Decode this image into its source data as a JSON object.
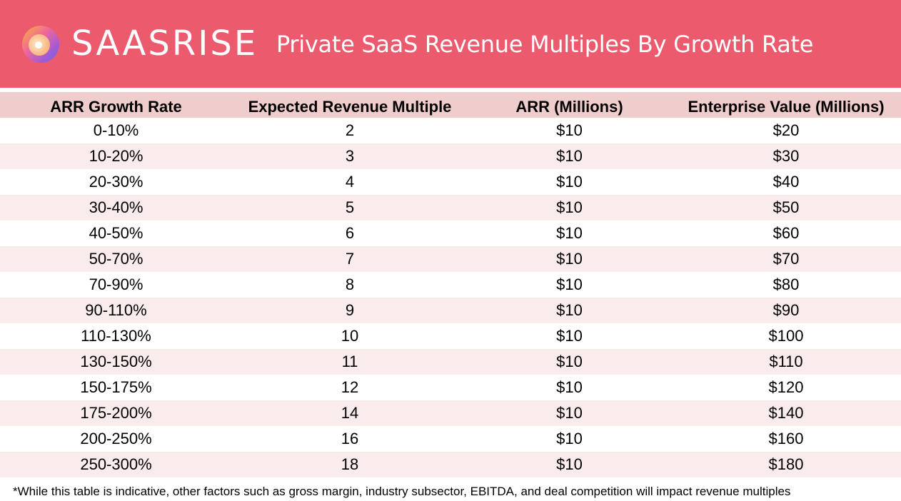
{
  "header": {
    "brand": "SAASRISE",
    "logo_icon": "saasrise-ring-logo",
    "title": "Private SaaS Revenue Multiples By Growth Rate",
    "colors": {
      "banner": "#ec5a6e",
      "header_row": "#f0cdcd",
      "stripe_row": "#faeced"
    }
  },
  "chart_data": {
    "type": "table",
    "columns": [
      "ARR Growth Rate",
      "Expected Revenue Multiple",
      "ARR (Millions)",
      "Enterprise Value (Millions)"
    ],
    "rows": [
      [
        "0-10%",
        "2",
        "$10",
        "$20"
      ],
      [
        "10-20%",
        "3",
        "$10",
        "$30"
      ],
      [
        "20-30%",
        "4",
        "$10",
        "$40"
      ],
      [
        "30-40%",
        "5",
        "$10",
        "$50"
      ],
      [
        "40-50%",
        "6",
        "$10",
        "$60"
      ],
      [
        "50-70%",
        "7",
        "$10",
        "$70"
      ],
      [
        "70-90%",
        "8",
        "$10",
        "$80"
      ],
      [
        "90-110%",
        "9",
        "$10",
        "$90"
      ],
      [
        "110-130%",
        "10",
        "$10",
        "$100"
      ],
      [
        "130-150%",
        "11",
        "$10",
        "$110"
      ],
      [
        "150-175%",
        "12",
        "$10",
        "$120"
      ],
      [
        "175-200%",
        "14",
        "$10",
        "$140"
      ],
      [
        "200-250%",
        "16",
        "$10",
        "$160"
      ],
      [
        "250-300%",
        "18",
        "$10",
        "$180"
      ]
    ]
  },
  "footnote": "*While this table is indicative, other factors such as gross margin, industry subsector, EBITDA, and deal competition will impact revenue multiples"
}
